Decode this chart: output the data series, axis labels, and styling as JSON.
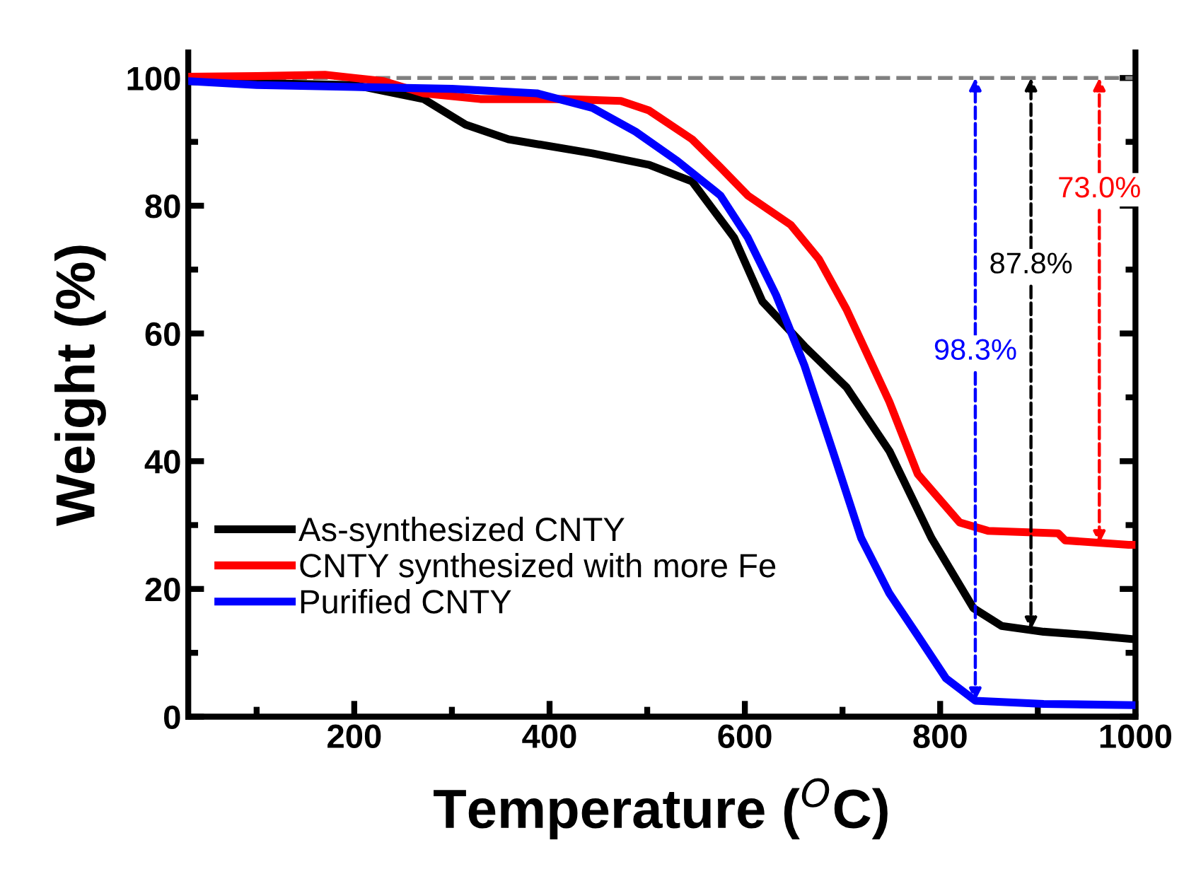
{
  "chart_data": {
    "type": "line",
    "xlabel": "Temperature ($^{O}$C)",
    "ylabel": "Weight (%)",
    "xlim": [
      30,
      1000
    ],
    "ylim": [
      0,
      104
    ],
    "xticks": [
      200,
      400,
      600,
      800,
      1000
    ],
    "yticks": [
      0,
      20,
      40,
      60,
      80,
      100
    ],
    "grid": false,
    "legend": "bottom left",
    "marker": "none",
    "line_style": "solid",
    "series": [
      {
        "name": "As-synthesized CNTY",
        "color": "#000000",
        "x": [
          30,
          100,
          200,
          271,
          314,
          358,
          444,
          502,
          546,
          589,
          618,
          661,
          704,
          748,
          791,
          834,
          863,
          906,
          950,
          1000
        ],
        "values": [
          99.5,
          99.2,
          98.9,
          96.7,
          92.7,
          90.4,
          88.2,
          86.4,
          83.8,
          75,
          65,
          58,
          51.6,
          41.6,
          28,
          17,
          14.2,
          13.3,
          12.8,
          12.1
        ]
      },
      {
        "name": "CNTY synthesized with more Fe",
        "color": "#ff0000",
        "x": [
          30,
          100,
          170,
          230,
          271,
          329,
          416,
          473,
          502,
          546,
          575,
          603,
          647,
          676,
          704,
          748,
          777,
          820,
          849,
          921,
          928,
          993,
          1000
        ],
        "values": [
          100.2,
          100.3,
          100.5,
          99.5,
          97.6,
          96.7,
          96.7,
          96.4,
          94.9,
          90.4,
          86,
          81.6,
          77,
          71.6,
          63.8,
          49.3,
          38,
          30.4,
          29.1,
          28.7,
          27.6,
          26.9,
          26.9
        ]
      },
      {
        "name": "Purified CNTY",
        "color": "#0000ff",
        "x": [
          30,
          100,
          200,
          300,
          387,
          444,
          488,
          531,
          575,
          603,
          632,
          661,
          690,
          719,
          748,
          777,
          806,
          836,
          906,
          1000
        ],
        "values": [
          99.5,
          98.9,
          98.6,
          98.3,
          97.6,
          95.3,
          91.6,
          87,
          81.6,
          75,
          66,
          55,
          41.6,
          28,
          19.3,
          12.7,
          6,
          2.5,
          2,
          1.8
        ]
      }
    ],
    "ref_lines": [
      {
        "axis": "y",
        "value": 100,
        "label": null,
        "color": "#808080",
        "line_style": "dashed"
      }
    ],
    "annotations": [
      {
        "text": "98.3%",
        "x": 836,
        "y": 2.5
      },
      {
        "text": "87.8%",
        "x": 893,
        "y": 13.6
      },
      {
        "text": "73.0%",
        "x": 963,
        "y": 27.1
      }
    ]
  }
}
